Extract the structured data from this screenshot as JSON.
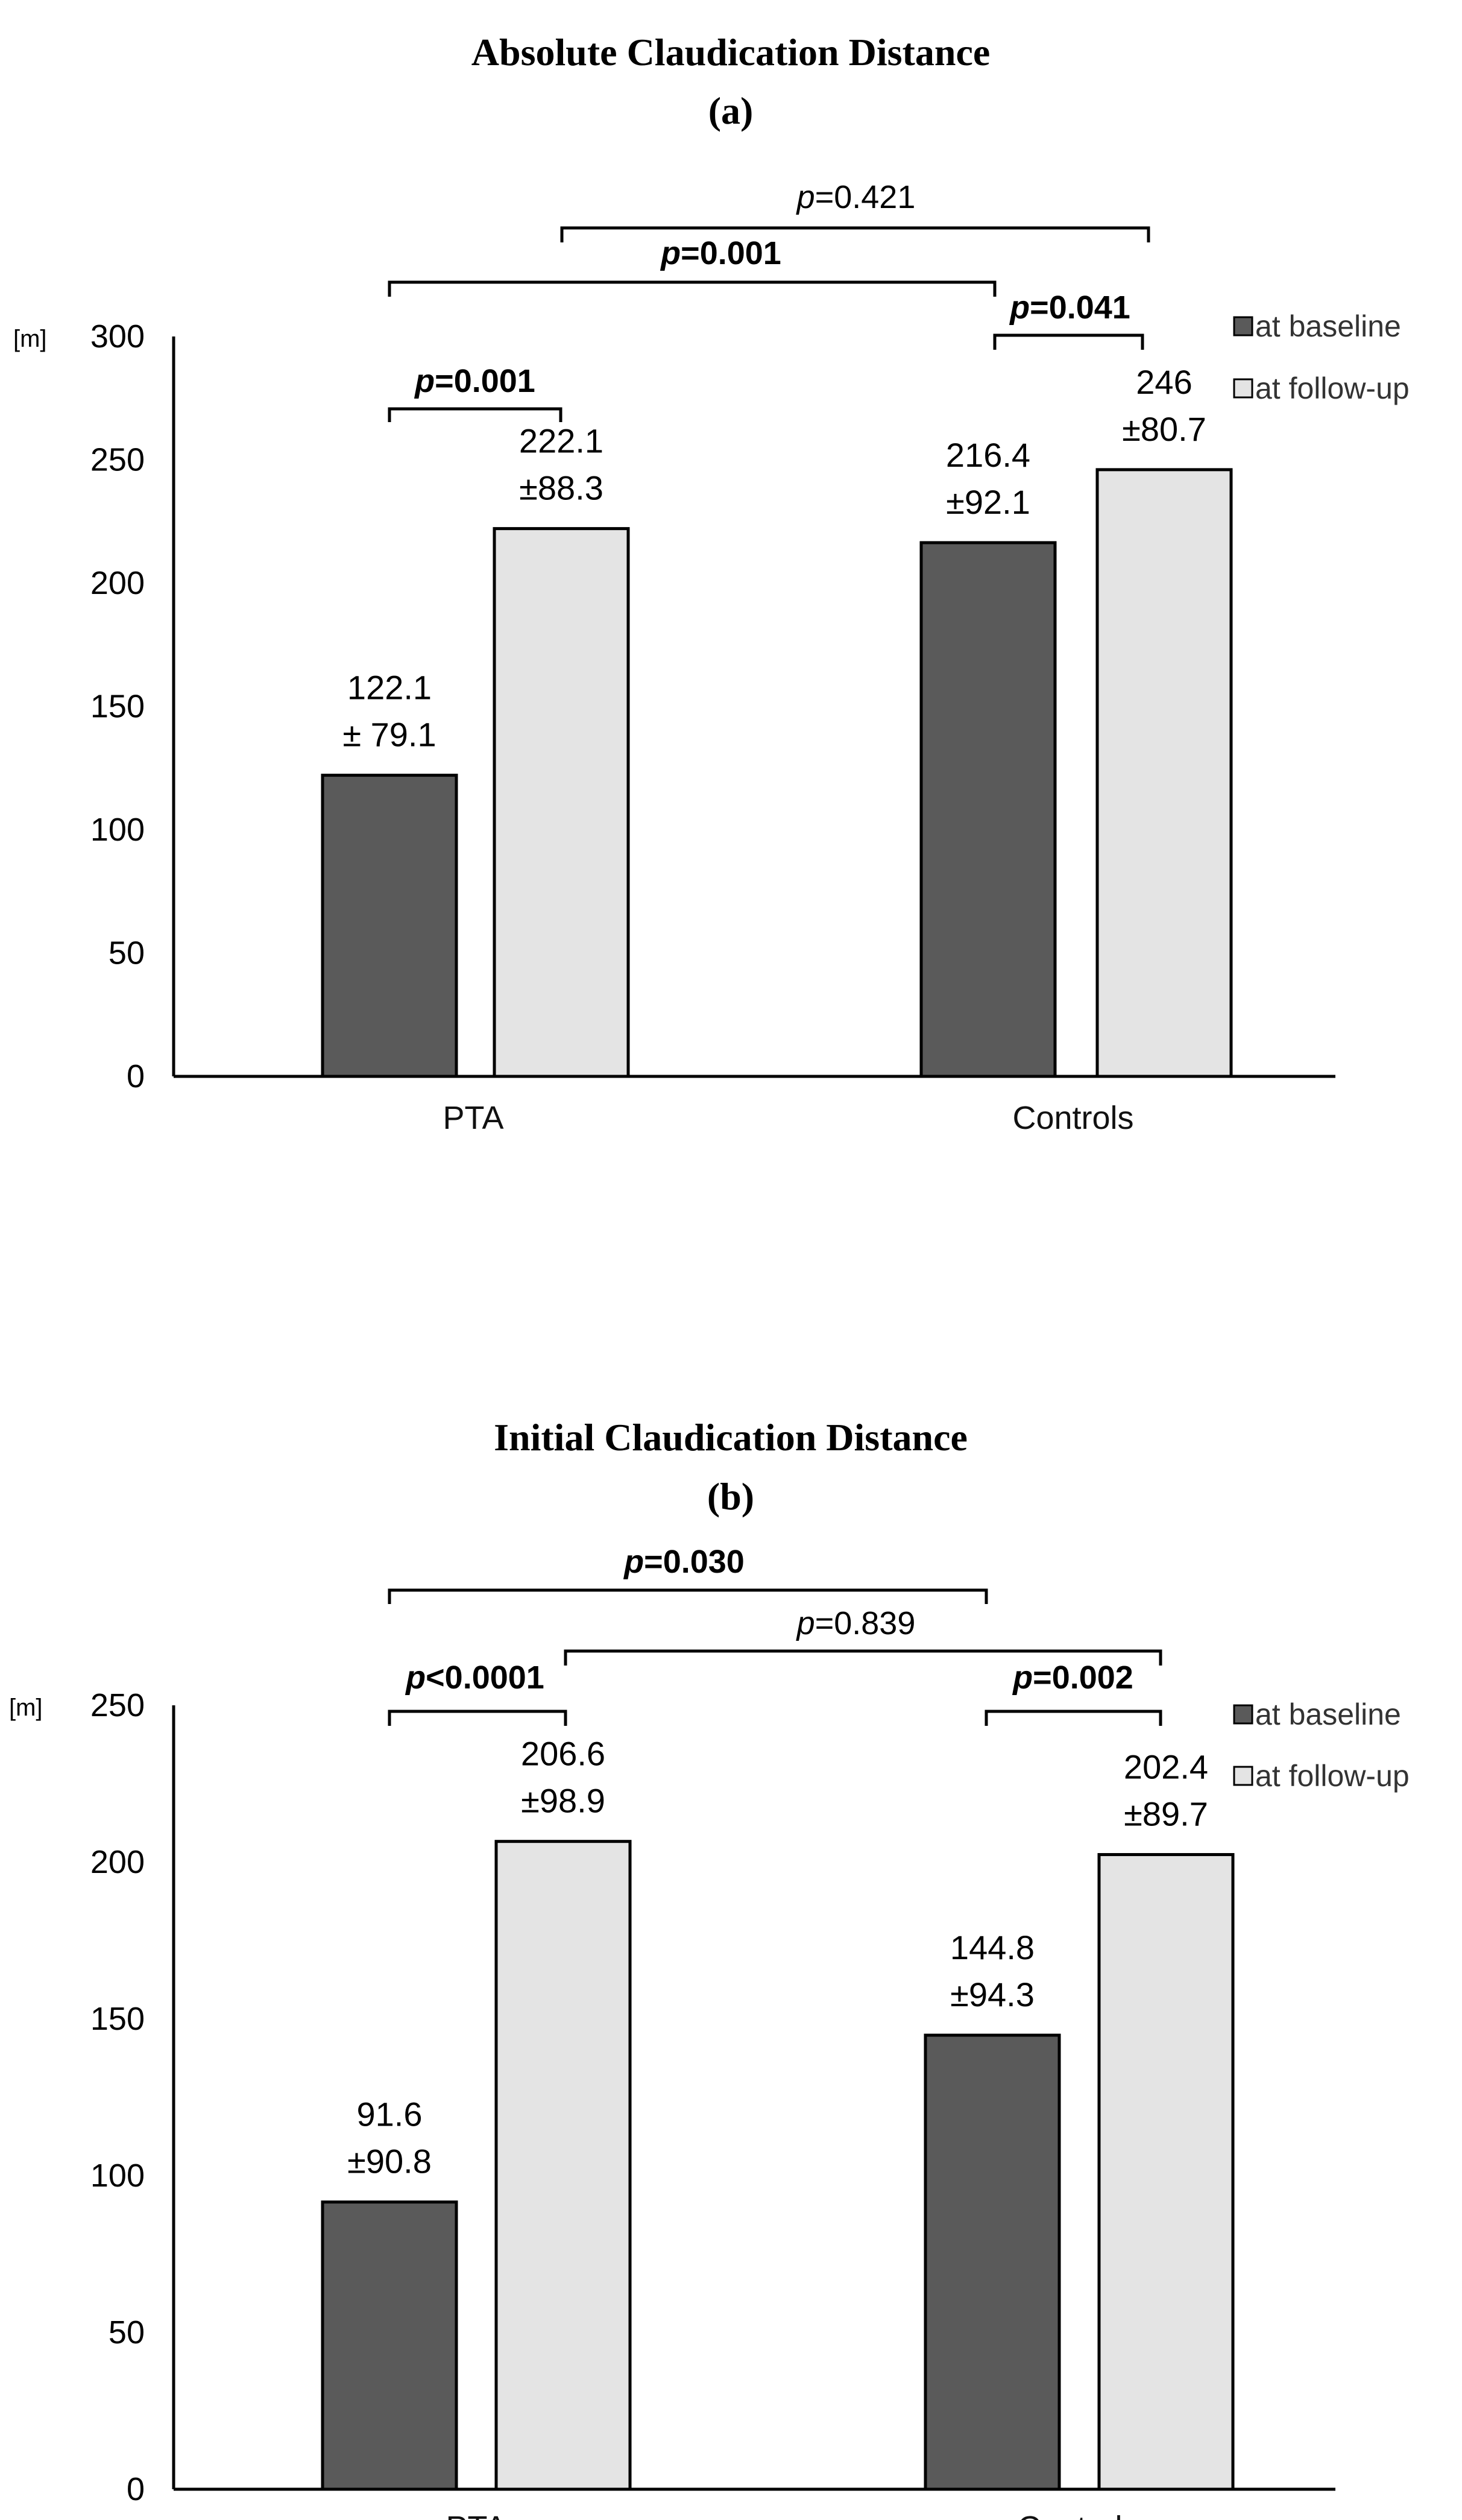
{
  "colors": {
    "baseline": "#5a5a5a",
    "followup": "#e4e4e4",
    "axis": "#000000"
  },
  "chart_data": [
    {
      "type": "bar",
      "title": "Absolute Claudication Distance",
      "subtitle": "(a)",
      "ylabel": "[m]",
      "ylim": [
        0,
        300
      ],
      "yticks": [
        0,
        50,
        100,
        150,
        200,
        250,
        300
      ],
      "categories": [
        "PTA",
        "Controls"
      ],
      "series": [
        {
          "name": "at baseline",
          "values": [
            122.1,
            216.4
          ],
          "labels_line1": [
            "122.1",
            "216.4"
          ],
          "labels_line2": [
            "± 79.1",
            "±92.1"
          ]
        },
        {
          "name": "at follow-up",
          "values": [
            222.1,
            246
          ],
          "labels_line1": [
            "222.1",
            "246"
          ],
          "labels_line2": [
            "±88.3",
            "±80.7"
          ]
        }
      ],
      "comparisons": [
        {
          "between": "PTA baseline vs PTA follow-up",
          "p_prefix": "p",
          "p_suffix": "=0.001",
          "bold": true
        },
        {
          "between": "PTA baseline vs Controls baseline",
          "p_prefix": "p",
          "p_suffix": "=0.001",
          "bold": true
        },
        {
          "between": "PTA follow-up vs Controls follow-up",
          "p_prefix": "p",
          "p_suffix": "=0.421",
          "bold": false
        },
        {
          "between": "Controls baseline vs Controls follow-up",
          "p_prefix": "p",
          "p_suffix": "=0.041",
          "bold": true
        }
      ],
      "legend": [
        "at baseline",
        "at follow-up"
      ]
    },
    {
      "type": "bar",
      "title": "Initial Claudication Distance",
      "subtitle": "(b)",
      "ylabel": "[m]",
      "ylim": [
        0,
        250
      ],
      "yticks": [
        0,
        50,
        100,
        150,
        200,
        250
      ],
      "categories": [
        "PTA",
        "Controls"
      ],
      "series": [
        {
          "name": "at baseline",
          "values": [
            91.6,
            144.8
          ],
          "labels_line1": [
            "91.6",
            "144.8"
          ],
          "labels_line2": [
            "±90.8",
            "±94.3"
          ]
        },
        {
          "name": "at follow-up",
          "values": [
            206.6,
            202.4
          ],
          "labels_line1": [
            "206.6",
            "202.4"
          ],
          "labels_line2": [
            "±98.9",
            "±89.7"
          ]
        }
      ],
      "comparisons": [
        {
          "between": "PTA baseline vs PTA follow-up",
          "p_prefix": "p",
          "p_suffix": "<0.0001",
          "bold": true
        },
        {
          "between": "PTA baseline vs Controls baseline",
          "p_prefix": "p",
          "p_suffix": "=0.030",
          "bold": true
        },
        {
          "between": "PTA follow-up vs Controls follow-up",
          "p_prefix": "p",
          "p_suffix": "=0.839",
          "bold": false
        },
        {
          "between": "Controls baseline vs Controls follow-up",
          "p_prefix": "p",
          "p_suffix": "=0.002",
          "bold": true
        }
      ],
      "legend": [
        "at baseline",
        "at follow-up"
      ]
    }
  ]
}
